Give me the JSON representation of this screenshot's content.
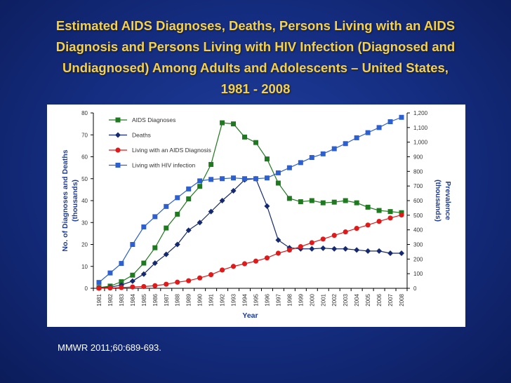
{
  "slide": {
    "title_lines": [
      "Estimated AIDS Diagnoses, Deaths, Persons Living with an AIDS",
      "Diagnosis and Persons Living with HIV Infection (Diagnosed and",
      "Undiagnosed) Among Adults and Adolescents – United States,",
      "1981 - 2008"
    ],
    "citation": "MMWR 2011;60:689-693."
  },
  "colors": {
    "aids_diagnoses": "#1e7a1e",
    "deaths": "#152a6e",
    "living_aids": "#e01a1a",
    "living_hiv": "#2c5fd0",
    "axis_label": "#1a3a9a"
  },
  "chart_data": {
    "type": "line",
    "title": "Estimated AIDS Diagnoses, Deaths, Persons Living with an AIDS Diagnosis and Persons Living with HIV Infection (Diagnosed and Undiagnosed) Among Adults and Adolescents – United States, 1981 - 2008",
    "xlabel": "Year",
    "ylabel": "No. of Diagnoses and Deaths (thousands)",
    "y2label": "Prevalence (thousands)",
    "x": [
      "1981",
      "1982",
      "1983",
      "1984",
      "1985",
      "1986",
      "1987",
      "1988",
      "1989",
      "1990",
      "1991",
      "1992",
      "1993",
      "1994",
      "1995",
      "1996",
      "1997",
      "1998",
      "1999",
      "2000",
      "2001",
      "2002",
      "2003",
      "2004",
      "2005",
      "2006",
      "2007",
      "2008"
    ],
    "ylim": [
      0,
      80
    ],
    "y2lim": [
      0,
      1200
    ],
    "yticks": [
      "0",
      "10",
      "20",
      "30",
      "40",
      "50",
      "60",
      "70",
      "80"
    ],
    "y2ticks": [
      "0",
      "100",
      "200",
      "300",
      "400",
      "500",
      "600",
      "700",
      "800",
      "900",
      "1,000",
      "1,100",
      "1,200"
    ],
    "legend_position": "top-left",
    "grid": false,
    "series": [
      {
        "name": "AIDS Diagnoses",
        "axis": "left",
        "marker": "square",
        "values": [
          0.3,
          1.0,
          3.0,
          6.0,
          11.5,
          18.5,
          27.5,
          33.8,
          40.8,
          46.5,
          56.5,
          75.5,
          75.0,
          69.0,
          66.5,
          59.0,
          48.0,
          41.0,
          39.5,
          40.0,
          39.0,
          39.3,
          40.0,
          39.0,
          37.0,
          35.5,
          35.0,
          34.5
        ]
      },
      {
        "name": "Deaths",
        "axis": "left",
        "marker": "diamond",
        "values": [
          0.3,
          0.5,
          1.5,
          3.3,
          6.5,
          11.5,
          15.5,
          20.0,
          26.5,
          30.0,
          35.0,
          40.0,
          44.5,
          49.5,
          50.0,
          37.5,
          22.0,
          18.5,
          18.0,
          18.0,
          18.3,
          18.0,
          18.0,
          17.5,
          17.0,
          17.0,
          16.0,
          16.0
        ]
      },
      {
        "name": "Living with an AIDS Diagnosis",
        "axis": "right",
        "marker": "circle",
        "values": [
          0,
          2,
          5,
          9,
          12,
          18,
          28,
          42,
          52,
          71,
          93,
          125,
          150,
          168,
          186,
          208,
          240,
          262,
          285,
          312,
          337,
          362,
          386,
          410,
          433,
          458,
          481,
          502
        ]
      },
      {
        "name": "Living with HIV infection",
        "axis": "right",
        "marker": "square",
        "values": [
          40,
          105,
          170,
          300,
          420,
          490,
          560,
          620,
          680,
          735,
          745,
          750,
          755,
          750,
          750,
          755,
          790,
          825,
          860,
          895,
          920,
          955,
          990,
          1030,
          1065,
          1100,
          1140,
          1170
        ]
      }
    ]
  }
}
